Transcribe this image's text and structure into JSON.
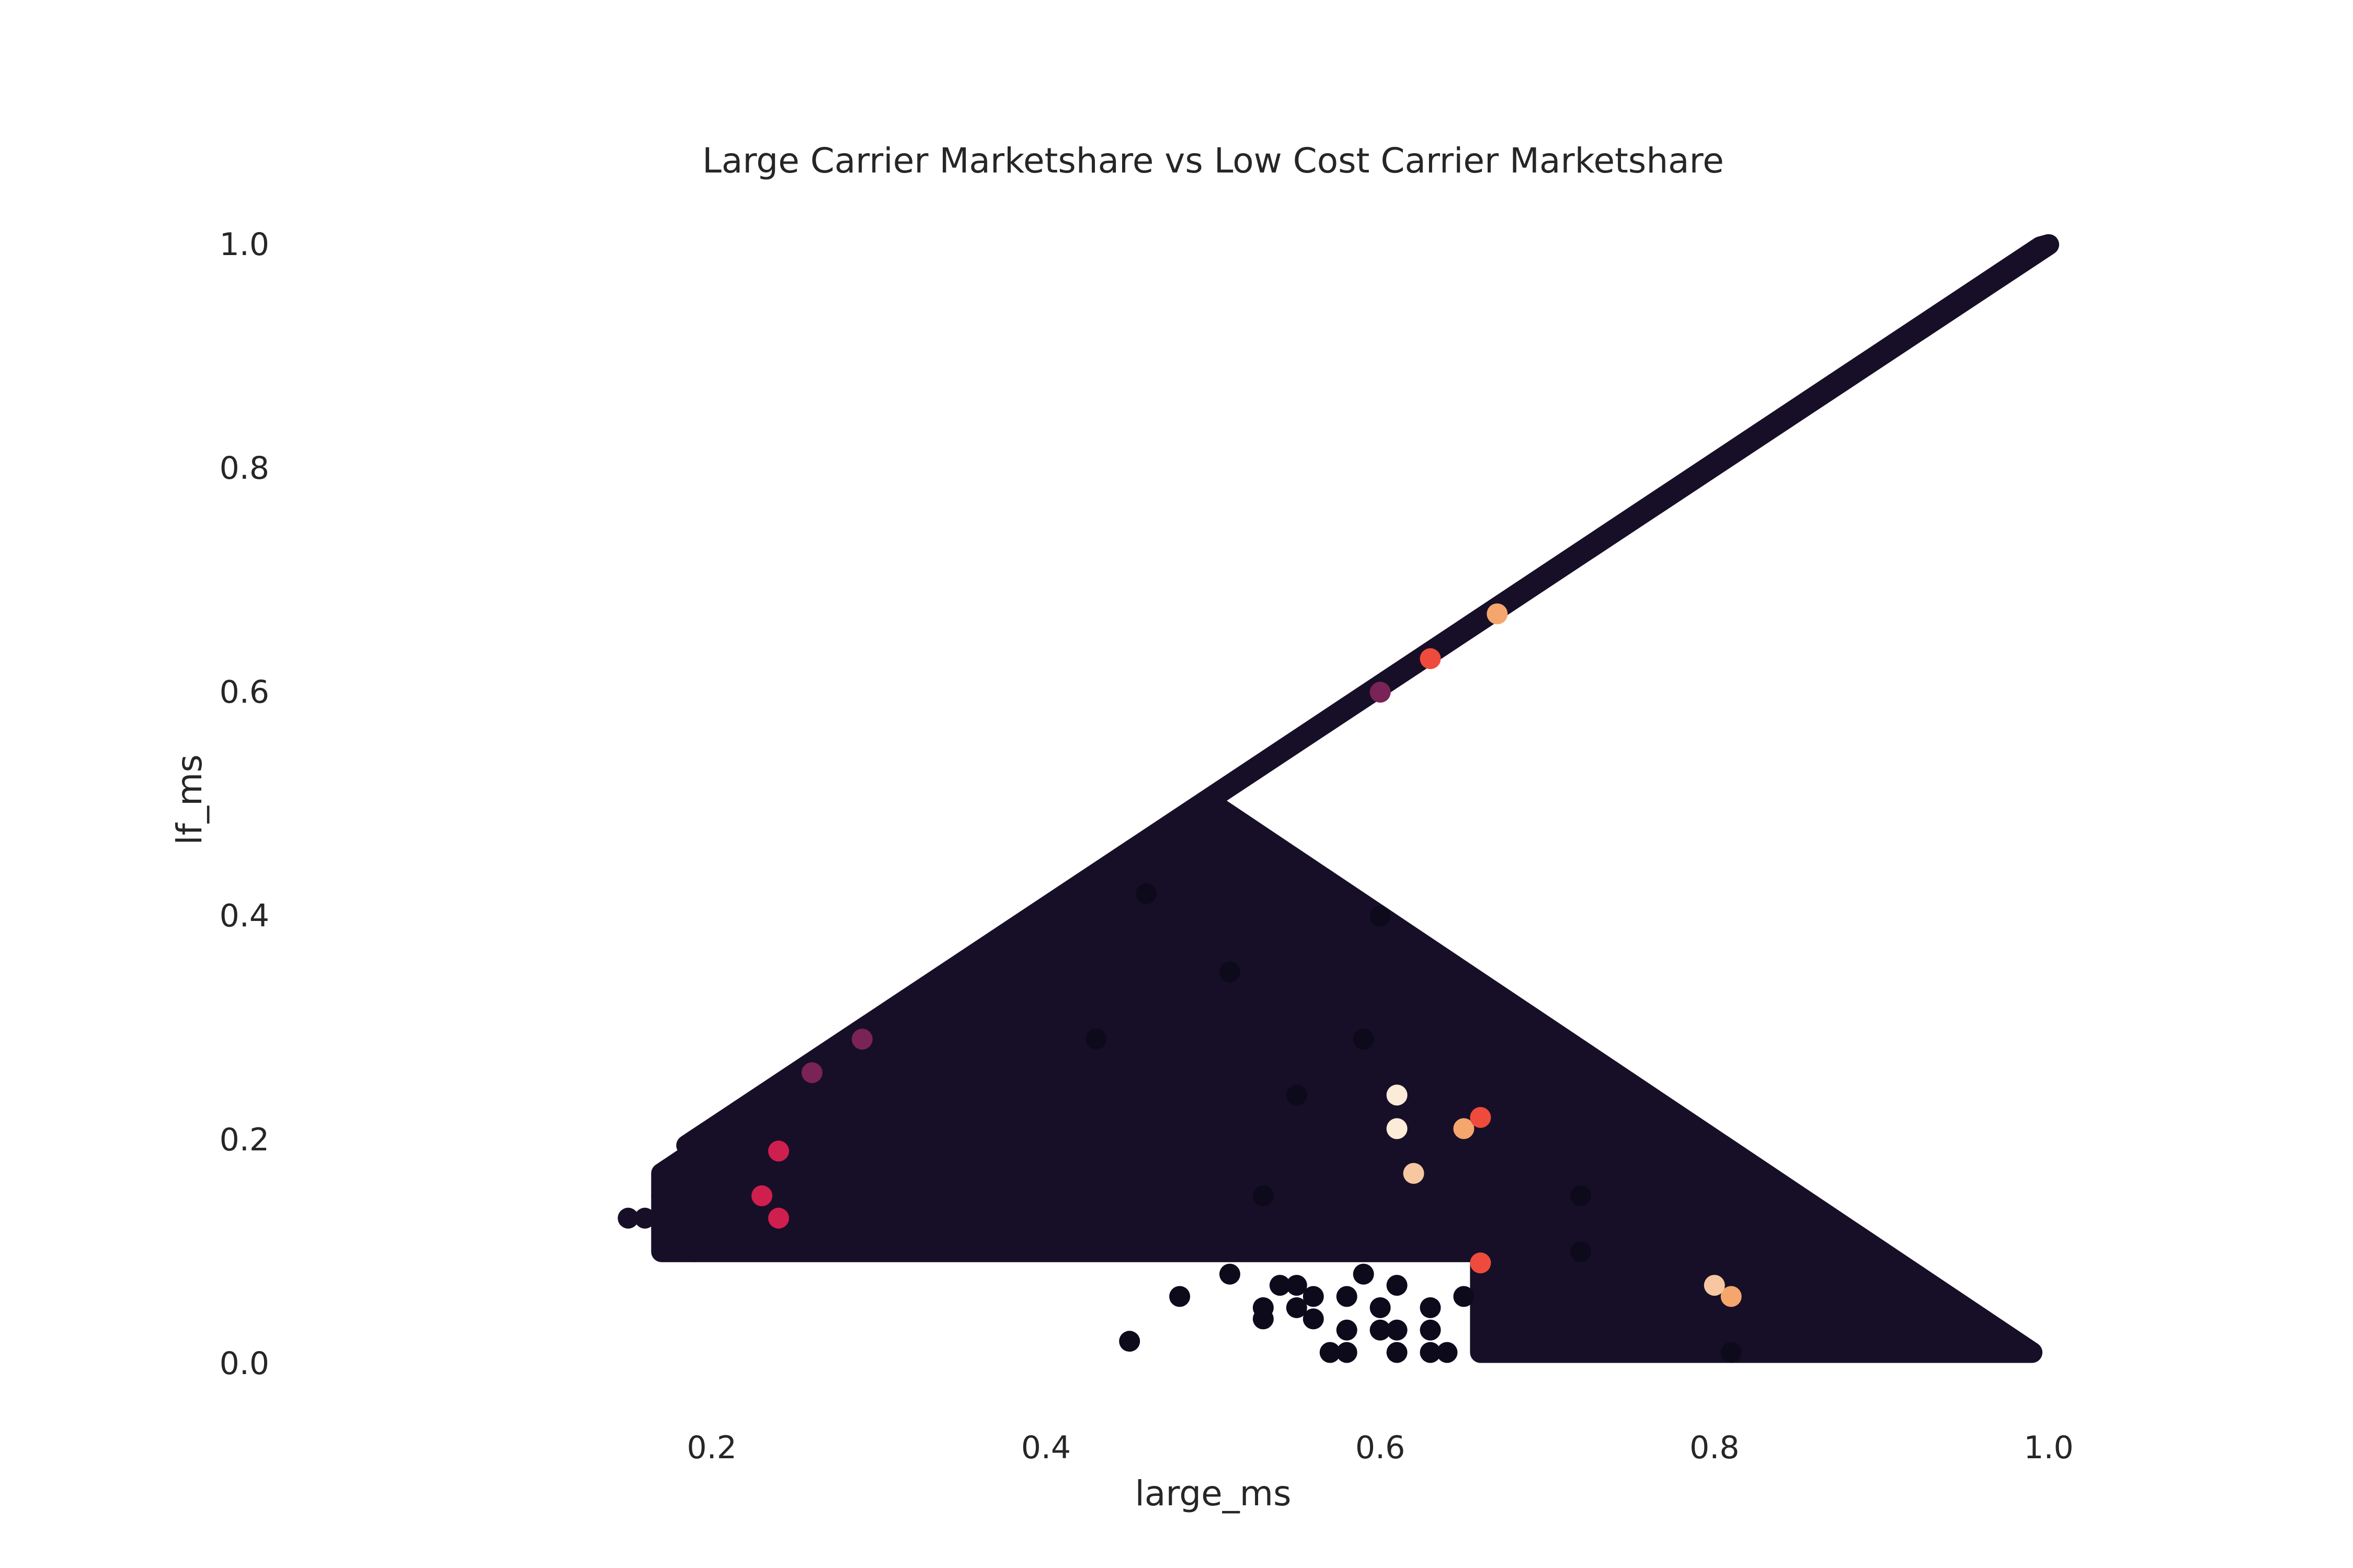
{
  "chart_data": {
    "type": "scatter",
    "title": "Large Carrier Marketshare vs Low Cost Carrier Marketshare",
    "xlabel": "large_ms",
    "ylabel": "lf_ms",
    "xlim": [
      0.14,
      1.0
    ],
    "ylim": [
      0.0,
      1.0
    ],
    "xticks": [
      0.2,
      0.4,
      0.6,
      0.8,
      1.0
    ],
    "xtick_labels": [
      "0.2",
      "0.4",
      "0.6",
      "0.8",
      "1.0"
    ],
    "yticks": [
      0.0,
      0.2,
      0.4,
      0.6,
      0.8,
      1.0
    ],
    "ytick_labels": [
      "0.0",
      "0.2",
      "0.4",
      "0.6",
      "0.8",
      "1.0"
    ],
    "grid": false,
    "legend": "none",
    "colormap": "rocket",
    "colors": {
      "dense": "#170f27",
      "dark": "#0d0a1c",
      "purple": "#7a2356",
      "magenta": "#cf1f4f",
      "red": "#ee4b3c",
      "orange": "#f5a66c",
      "peach": "#f6c7a0",
      "cream": "#fbebd8"
    },
    "regions": [
      {
        "name": "diagonal line (lf_ms = large_ms)",
        "polygon": [
          [
            0.19,
            0.2
          ],
          [
            1.0,
            1.0
          ],
          [
            0.995,
            0.998
          ],
          [
            0.185,
            0.195
          ]
        ]
      },
      {
        "name": "upper triangle (lf_ms between 0.1 and large_ms)",
        "polygon": [
          [
            0.17,
            0.17
          ],
          [
            0.5,
            0.5
          ],
          [
            0.9,
            0.1
          ],
          [
            0.17,
            0.1
          ]
        ]
      },
      {
        "name": "lower band (lf_ms below 0.1)",
        "polygon": [
          [
            0.66,
            0.1
          ],
          [
            0.9,
            0.1
          ],
          [
            0.99,
            0.01
          ],
          [
            0.66,
            0.01
          ]
        ]
      }
    ],
    "points": [
      {
        "x": 0.15,
        "y": 0.13,
        "c": "dense"
      },
      {
        "x": 0.16,
        "y": 0.13,
        "c": "dense"
      },
      {
        "x": 0.17,
        "y": 0.12,
        "c": "dense"
      },
      {
        "x": 0.17,
        "y": 0.15,
        "c": "dense"
      },
      {
        "x": 0.18,
        "y": 0.11,
        "c": "dense"
      },
      {
        "x": 0.19,
        "y": 0.1,
        "c": "dense"
      },
      {
        "x": 0.2,
        "y": 0.18,
        "c": "dense"
      },
      {
        "x": 0.45,
        "y": 0.02,
        "c": "dark"
      },
      {
        "x": 0.48,
        "y": 0.06,
        "c": "dark"
      },
      {
        "x": 0.51,
        "y": 0.08,
        "c": "dark"
      },
      {
        "x": 0.53,
        "y": 0.05,
        "c": "dark"
      },
      {
        "x": 0.53,
        "y": 0.04,
        "c": "dark"
      },
      {
        "x": 0.54,
        "y": 0.07,
        "c": "dark"
      },
      {
        "x": 0.55,
        "y": 0.07,
        "c": "dark"
      },
      {
        "x": 0.55,
        "y": 0.05,
        "c": "dark"
      },
      {
        "x": 0.56,
        "y": 0.04,
        "c": "dark"
      },
      {
        "x": 0.56,
        "y": 0.06,
        "c": "dark"
      },
      {
        "x": 0.57,
        "y": 0.01,
        "c": "dark"
      },
      {
        "x": 0.58,
        "y": 0.01,
        "c": "dark"
      },
      {
        "x": 0.58,
        "y": 0.03,
        "c": "dark"
      },
      {
        "x": 0.58,
        "y": 0.06,
        "c": "dark"
      },
      {
        "x": 0.59,
        "y": 0.08,
        "c": "dark"
      },
      {
        "x": 0.6,
        "y": 0.03,
        "c": "dark"
      },
      {
        "x": 0.6,
        "y": 0.05,
        "c": "dark"
      },
      {
        "x": 0.61,
        "y": 0.01,
        "c": "dark"
      },
      {
        "x": 0.61,
        "y": 0.03,
        "c": "dark"
      },
      {
        "x": 0.61,
        "y": 0.07,
        "c": "dark"
      },
      {
        "x": 0.63,
        "y": 0.01,
        "c": "dark"
      },
      {
        "x": 0.63,
        "y": 0.03,
        "c": "dark"
      },
      {
        "x": 0.63,
        "y": 0.05,
        "c": "dark"
      },
      {
        "x": 0.64,
        "y": 0.01,
        "c": "dark"
      },
      {
        "x": 0.65,
        "y": 0.06,
        "c": "dark"
      },
      {
        "x": 0.46,
        "y": 0.42,
        "c": "dark"
      },
      {
        "x": 0.51,
        "y": 0.35,
        "c": "dark"
      },
      {
        "x": 0.6,
        "y": 0.4,
        "c": "dark"
      },
      {
        "x": 0.43,
        "y": 0.29,
        "c": "dark"
      },
      {
        "x": 0.55,
        "y": 0.24,
        "c": "dark"
      },
      {
        "x": 0.59,
        "y": 0.29,
        "c": "dark"
      },
      {
        "x": 0.72,
        "y": 0.15,
        "c": "dark"
      },
      {
        "x": 0.72,
        "y": 0.1,
        "c": "dark"
      },
      {
        "x": 0.81,
        "y": 0.01,
        "c": "dark"
      },
      {
        "x": 0.53,
        "y": 0.15,
        "c": "dark"
      },
      {
        "x": 0.63,
        "y": 0.63,
        "c": "red"
      },
      {
        "x": 0.67,
        "y": 0.67,
        "c": "orange"
      },
      {
        "x": 0.6,
        "y": 0.6,
        "c": "purple"
      },
      {
        "x": 0.29,
        "y": 0.29,
        "c": "purple"
      },
      {
        "x": 0.26,
        "y": 0.26,
        "c": "purple"
      },
      {
        "x": 0.23,
        "y": 0.15,
        "c": "magenta"
      },
      {
        "x": 0.24,
        "y": 0.13,
        "c": "magenta"
      },
      {
        "x": 0.24,
        "y": 0.19,
        "c": "magenta"
      },
      {
        "x": 0.61,
        "y": 0.24,
        "c": "cream"
      },
      {
        "x": 0.61,
        "y": 0.21,
        "c": "cream"
      },
      {
        "x": 0.62,
        "y": 0.17,
        "c": "peach"
      },
      {
        "x": 0.65,
        "y": 0.21,
        "c": "orange"
      },
      {
        "x": 0.81,
        "y": 0.06,
        "c": "orange"
      },
      {
        "x": 0.8,
        "y": 0.07,
        "c": "peach"
      },
      {
        "x": 0.66,
        "y": 0.09,
        "c": "red"
      },
      {
        "x": 0.66,
        "y": 0.22,
        "c": "red"
      }
    ]
  }
}
